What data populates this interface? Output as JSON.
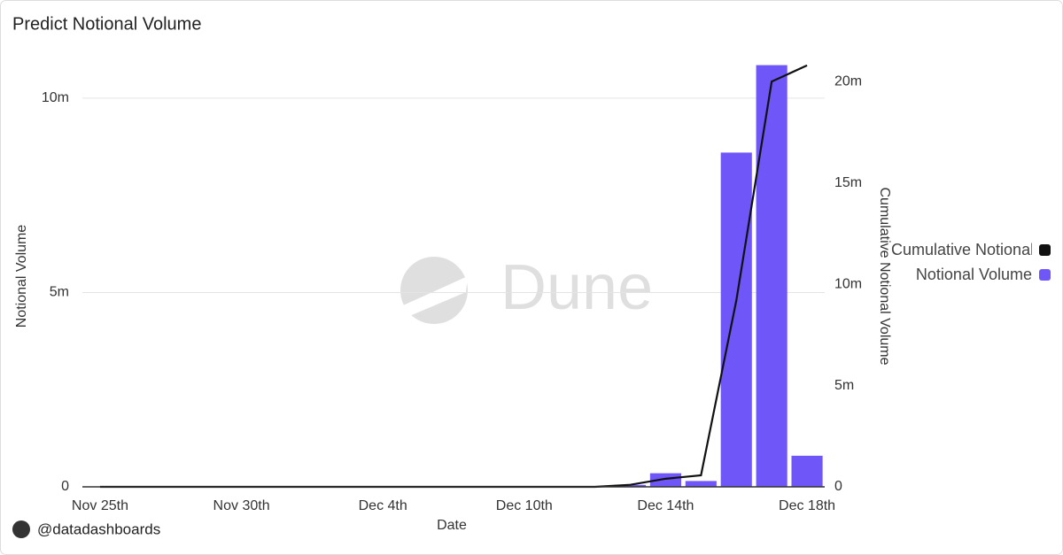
{
  "title": "Predict Notional Volume",
  "footer": "@datadashboards",
  "watermark": "Dune",
  "chart_data": {
    "type": "bar",
    "xlabel": "Date",
    "ylabel": "Notional Volume",
    "y2label": "Cumulative Notional Volume",
    "categories": [
      "Nov 25th",
      null,
      null,
      null,
      "Nov 30th",
      null,
      null,
      null,
      "Dec 4th",
      null,
      null,
      null,
      "Dec 10th",
      null,
      null,
      null,
      "Dec 14th",
      null,
      null,
      null,
      "Dec 18th"
    ],
    "series": [
      {
        "name": "Cumulative Notional Volume",
        "type": "line",
        "axis": "y2",
        "color": "#111111",
        "values": [
          0,
          0,
          0,
          0,
          0,
          0,
          0,
          0,
          0,
          0,
          0,
          0,
          0,
          0,
          0,
          100000,
          400000,
          570000,
          9200000,
          20000000,
          20800000
        ]
      },
      {
        "name": "Notional Volume",
        "type": "bar",
        "color": "#6e56f8",
        "values": [
          0,
          0,
          0,
          0,
          0,
          0,
          0,
          0,
          0,
          0,
          0,
          0,
          0,
          0,
          0,
          50000,
          350000,
          150000,
          8600000,
          10850000,
          800000
        ]
      }
    ],
    "ylim": [
      0,
      11000000
    ],
    "yticks": [
      {
        "value": 0,
        "label": "0"
      },
      {
        "value": 5000000,
        "label": "5m"
      },
      {
        "value": 10000000,
        "label": "10m"
      }
    ],
    "y2lim": [
      0,
      21100000
    ],
    "y2ticks": [
      {
        "value": 0,
        "label": "0"
      },
      {
        "value": 5000000,
        "label": "5m"
      },
      {
        "value": 10000000,
        "label": "10m"
      },
      {
        "value": 15000000,
        "label": "15m"
      },
      {
        "value": 20000000,
        "label": "20m"
      }
    ],
    "grid": true,
    "legend": "right"
  }
}
